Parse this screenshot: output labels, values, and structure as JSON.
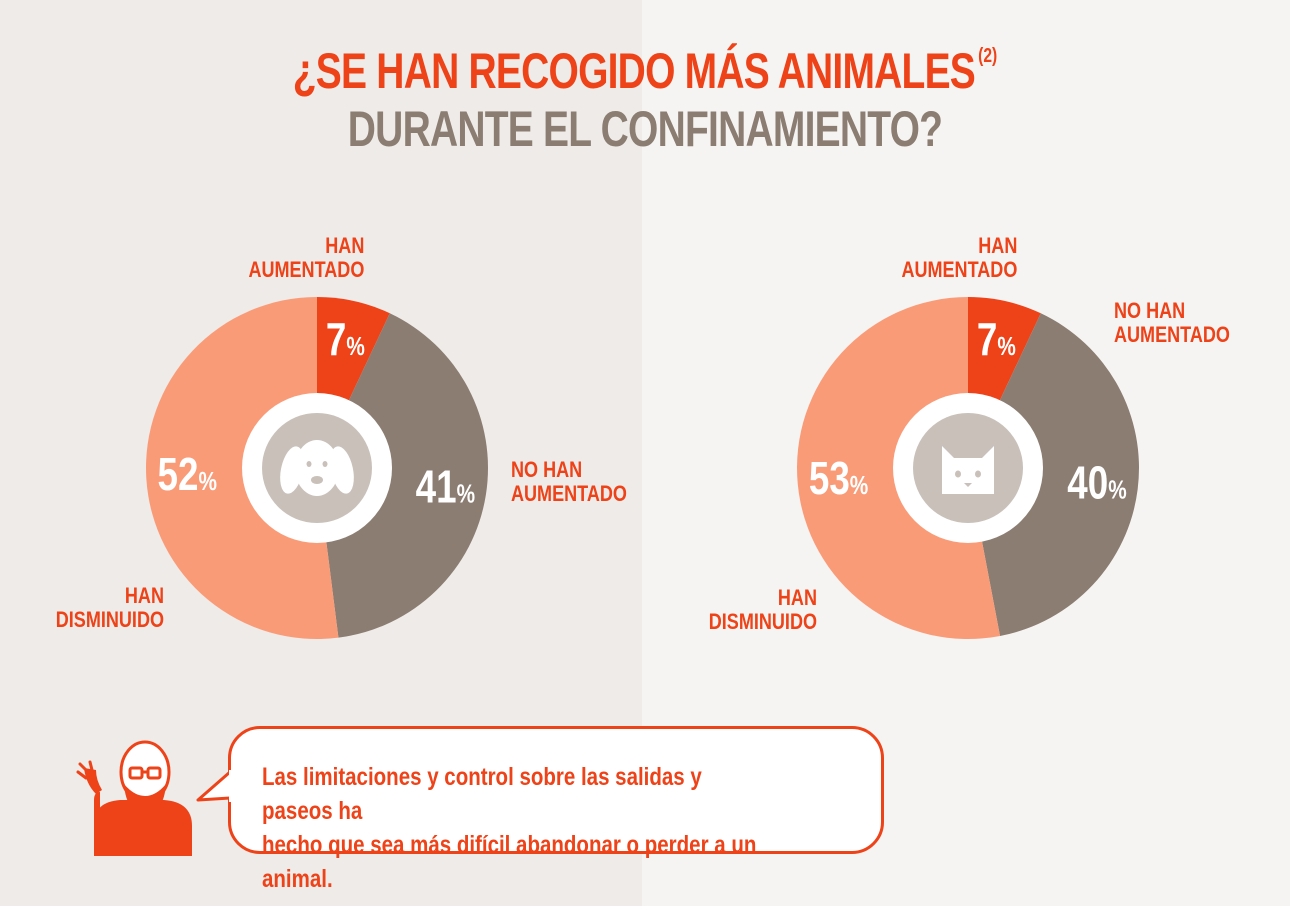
{
  "title": {
    "line1": "¿SE HAN RECOGIDO MÁS ANIMALES",
    "footnote": "(2)",
    "line2": "DURANTE EL CONFINAMIENTO?"
  },
  "colors": {
    "aumentado": "#ee4218",
    "no_aumentado": "#8b7d72",
    "disminuido": "#fa9b78",
    "center_icon_bg": "#c9c0ba",
    "text_accent": "#ee4218"
  },
  "chart_data": [
    {
      "type": "pie",
      "icon": "dog-icon",
      "slices": [
        {
          "label": "HAN\nAUMENTADO",
          "value": 7,
          "display": "7"
        },
        {
          "label": "NO HAN\nAUMENTADO",
          "value": 41,
          "display": "41"
        },
        {
          "label": "HAN\nDISMINUIDO",
          "value": 52,
          "display": "52"
        }
      ]
    },
    {
      "type": "pie",
      "icon": "cat-icon",
      "slices": [
        {
          "label": "HAN\nAUMENTADO",
          "value": 7,
          "display": "7"
        },
        {
          "label": "NO HAN\nAUMENTADO",
          "value": 40,
          "display": "40"
        },
        {
          "label": "HAN\nDISMINUIDO",
          "value": 53,
          "display": "53"
        }
      ]
    }
  ],
  "percent_sign": "%",
  "quote": {
    "text": "Las limitaciones y control sobre las salidas y paseos ha\nhecho que sea más difícil abandonar o perder a un animal."
  }
}
